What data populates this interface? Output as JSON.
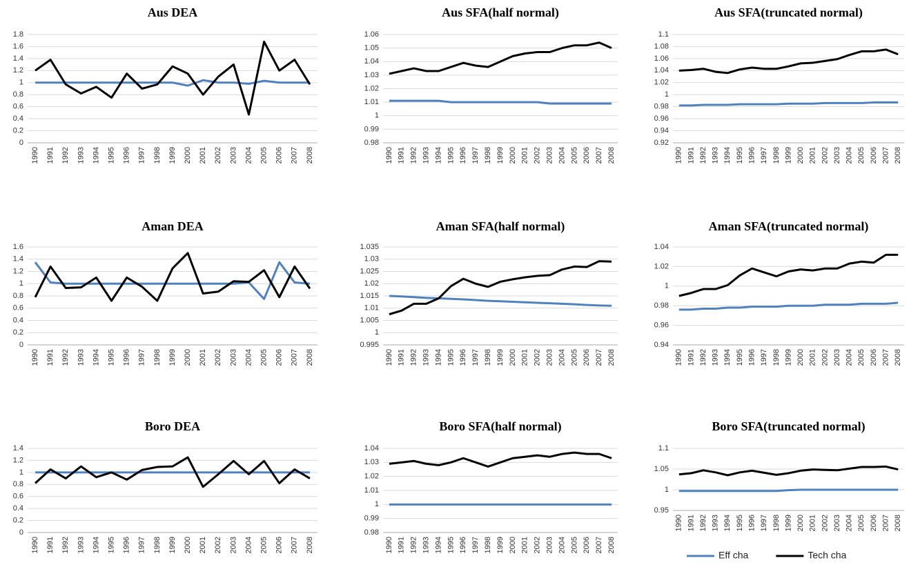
{
  "chart_data": [
    {
      "type": "line",
      "title": "Aus DEA",
      "categories": [
        "1990",
        "1991",
        "1992",
        "1993",
        "1994",
        "1995",
        "1996",
        "1997",
        "1998",
        "1999",
        "2000",
        "2001",
        "2002",
        "2003",
        "2004",
        "2005",
        "2006",
        "2007",
        "2008"
      ],
      "ylim": [
        0,
        1.8
      ],
      "yticks": [
        0,
        0.2,
        0.4,
        0.6,
        0.8,
        1,
        1.2,
        1.4,
        1.6,
        1.8
      ],
      "grid": true,
      "series": [
        {
          "color": "#4f81bd",
          "values": [
            1,
            1,
            1,
            1,
            1,
            1,
            1,
            1,
            1,
            1,
            0.95,
            1.04,
            1,
            1,
            0.98,
            1.03,
            1,
            1,
            1
          ]
        },
        {
          "color": "#000000",
          "values": [
            1.2,
            1.38,
            0.97,
            0.82,
            0.93,
            0.75,
            1.15,
            0.9,
            0.97,
            1.27,
            1.15,
            0.8,
            1.1,
            1.3,
            0.47,
            1.68,
            1.2,
            1.38,
            0.97
          ]
        }
      ]
    },
    {
      "type": "line",
      "title": "Aus SFA(half normal)",
      "categories": [
        "1990",
        "1991",
        "1992",
        "1993",
        "1994",
        "1995",
        "1996",
        "1997",
        "1998",
        "1999",
        "2000",
        "2001",
        "2002",
        "2003",
        "2004",
        "2005",
        "2006",
        "2007",
        "2008"
      ],
      "ylim": [
        0.98,
        1.06
      ],
      "yticks": [
        0.98,
        0.99,
        1,
        1.01,
        1.02,
        1.03,
        1.04,
        1.05,
        1.06
      ],
      "grid": true,
      "series": [
        {
          "color": "#4f81bd",
          "values": [
            1.011,
            1.011,
            1.011,
            1.011,
            1.011,
            1.01,
            1.01,
            1.01,
            1.01,
            1.01,
            1.01,
            1.01,
            1.01,
            1.009,
            1.009,
            1.009,
            1.009,
            1.009,
            1.009
          ]
        },
        {
          "color": "#000000",
          "values": [
            1.031,
            1.033,
            1.035,
            1.033,
            1.033,
            1.036,
            1.039,
            1.037,
            1.036,
            1.04,
            1.044,
            1.046,
            1.047,
            1.047,
            1.05,
            1.052,
            1.052,
            1.054,
            1.05
          ]
        }
      ]
    },
    {
      "type": "line",
      "title": "Aus SFA(truncated normal)",
      "categories": [
        "1990",
        "1991",
        "1992",
        "1993",
        "1994",
        "1995",
        "1996",
        "1997",
        "1998",
        "1999",
        "2000",
        "2001",
        "2002",
        "2003",
        "2004",
        "2005",
        "2006",
        "2007",
        "2008"
      ],
      "ylim": [
        0.92,
        1.1
      ],
      "yticks": [
        0.92,
        0.94,
        0.96,
        0.98,
        1,
        1.02,
        1.04,
        1.06,
        1.08,
        1.1
      ],
      "grid": true,
      "series": [
        {
          "color": "#4f81bd",
          "values": [
            0.982,
            0.982,
            0.983,
            0.983,
            0.983,
            0.984,
            0.984,
            0.984,
            0.984,
            0.985,
            0.985,
            0.985,
            0.986,
            0.986,
            0.986,
            0.986,
            0.987,
            0.987,
            0.987
          ]
        },
        {
          "color": "#000000",
          "values": [
            1.04,
            1.041,
            1.043,
            1.038,
            1.036,
            1.042,
            1.045,
            1.043,
            1.043,
            1.047,
            1.052,
            1.053,
            1.056,
            1.059,
            1.066,
            1.072,
            1.072,
            1.075,
            1.067
          ]
        }
      ]
    },
    {
      "type": "line",
      "title": "Aman DEA",
      "categories": [
        "1990",
        "1991",
        "1992",
        "1993",
        "1994",
        "1995",
        "1996",
        "1997",
        "1998",
        "1999",
        "2000",
        "2001",
        "2002",
        "2003",
        "2004",
        "2005",
        "2006",
        "2007",
        "2008"
      ],
      "ylim": [
        0,
        1.6
      ],
      "yticks": [
        0,
        0.2,
        0.4,
        0.6,
        0.8,
        1,
        1.2,
        1.4,
        1.6
      ],
      "grid": true,
      "series": [
        {
          "color": "#4f81bd",
          "values": [
            1.35,
            1.02,
            1,
            1,
            1,
            1,
            1,
            1,
            1,
            1,
            1,
            1,
            1,
            1,
            1.02,
            0.75,
            1.35,
            1.02,
            1
          ]
        },
        {
          "color": "#000000",
          "values": [
            0.78,
            1.28,
            0.93,
            0.94,
            1.1,
            0.72,
            1.1,
            0.95,
            0.72,
            1.25,
            1.5,
            0.84,
            0.87,
            1.04,
            1.03,
            1.22,
            0.78,
            1.28,
            0.92
          ]
        }
      ]
    },
    {
      "type": "line",
      "title": "Aman SFA(half normal)",
      "categories": [
        "1990",
        "1991",
        "1992",
        "1993",
        "1994",
        "1995",
        "1996",
        "1997",
        "1998",
        "1999",
        "2000",
        "2001",
        "2002",
        "2003",
        "2004",
        "2005",
        "2006",
        "2007",
        "2008"
      ],
      "ylim": [
        0.995,
        1.035
      ],
      "yticks": [
        0.995,
        1,
        1.005,
        1.01,
        1.015,
        1.02,
        1.025,
        1.03,
        1.035
      ],
      "grid": true,
      "series": [
        {
          "color": "#4f81bd",
          "values": [
            1.015,
            1.0148,
            1.0145,
            1.0142,
            1.014,
            1.0138,
            1.0136,
            1.0133,
            1.013,
            1.0128,
            1.0126,
            1.0124,
            1.0122,
            1.012,
            1.0118,
            1.0116,
            1.0113,
            1.0111,
            1.011
          ]
        },
        {
          "color": "#000000",
          "values": [
            1.0075,
            1.009,
            1.0118,
            1.0118,
            1.014,
            1.019,
            1.022,
            1.02,
            1.0187,
            1.0208,
            1.0218,
            1.0226,
            1.0232,
            1.0235,
            1.0258,
            1.027,
            1.0268,
            1.0292,
            1.029
          ]
        }
      ]
    },
    {
      "type": "line",
      "title": "Aman SFA(truncated normal)",
      "categories": [
        "1990",
        "1991",
        "1992",
        "1993",
        "1994",
        "1995",
        "1996",
        "1997",
        "1998",
        "1999",
        "2000",
        "2001",
        "2002",
        "2003",
        "2004",
        "2005",
        "2006",
        "2007",
        "2008"
      ],
      "ylim": [
        0.94,
        1.04
      ],
      "yticks": [
        0.94,
        0.96,
        0.98,
        1,
        1.02,
        1.04
      ],
      "grid": true,
      "series": [
        {
          "color": "#4f81bd",
          "values": [
            0.976,
            0.976,
            0.977,
            0.977,
            0.978,
            0.978,
            0.979,
            0.979,
            0.979,
            0.98,
            0.98,
            0.98,
            0.981,
            0.981,
            0.981,
            0.982,
            0.982,
            0.982,
            0.983
          ]
        },
        {
          "color": "#000000",
          "values": [
            0.99,
            0.993,
            0.997,
            0.997,
            1.001,
            1.011,
            1.018,
            1.014,
            1.01,
            1.015,
            1.017,
            1.016,
            1.018,
            1.018,
            1.023,
            1.025,
            1.024,
            1.032,
            1.032
          ]
        }
      ]
    },
    {
      "type": "line",
      "title": "Boro DEA",
      "categories": [
        "1990",
        "1991",
        "1992",
        "1993",
        "1994",
        "1995",
        "1996",
        "1997",
        "1998",
        "1999",
        "2000",
        "2001",
        "2002",
        "2003",
        "2004",
        "2005",
        "2006",
        "2007",
        "2008"
      ],
      "ylim": [
        0,
        1.4
      ],
      "yticks": [
        0,
        0.2,
        0.4,
        0.6,
        0.8,
        1,
        1.2,
        1.4
      ],
      "grid": true,
      "series": [
        {
          "color": "#4f81bd",
          "values": [
            1,
            1,
            1,
            1,
            1,
            1,
            1,
            1,
            1,
            1,
            1,
            1,
            1,
            1,
            1,
            1,
            1,
            1,
            1
          ]
        },
        {
          "color": "#000000",
          "values": [
            0.82,
            1.05,
            0.9,
            1.1,
            0.92,
            1,
            0.88,
            1.04,
            1.09,
            1.1,
            1.25,
            0.76,
            0.97,
            1.19,
            0.97,
            1.19,
            0.82,
            1.05,
            0.9
          ]
        }
      ]
    },
    {
      "type": "line",
      "title": "Boro SFA(half normal)",
      "categories": [
        "1990",
        "1991",
        "1992",
        "1993",
        "1994",
        "1995",
        "1996",
        "1997",
        "1998",
        "1999",
        "2000",
        "2001",
        "2002",
        "2003",
        "2004",
        "2005",
        "2006",
        "2007",
        "2008"
      ],
      "ylim": [
        0.98,
        1.04
      ],
      "yticks": [
        0.98,
        0.99,
        1,
        1.01,
        1.02,
        1.03,
        1.04
      ],
      "grid": true,
      "series": [
        {
          "color": "#4f81bd",
          "values": [
            1,
            1,
            1,
            1,
            1,
            1,
            1,
            1,
            1,
            1,
            1,
            1,
            1,
            1,
            1,
            1,
            1,
            1,
            1
          ]
        },
        {
          "color": "#000000",
          "values": [
            1.029,
            1.03,
            1.031,
            1.029,
            1.028,
            1.03,
            1.033,
            1.03,
            1.027,
            1.03,
            1.033,
            1.034,
            1.035,
            1.034,
            1.036,
            1.037,
            1.036,
            1.036,
            1.033
          ]
        }
      ]
    },
    {
      "type": "line",
      "title": "Boro SFA(truncated normal)",
      "categories": [
        "1990",
        "1991",
        "1992",
        "1993",
        "1994",
        "1995",
        "1996",
        "1997",
        "1998",
        "1999",
        "2000",
        "2001",
        "2002",
        "2003",
        "2004",
        "2005",
        "2006",
        "2007",
        "2008"
      ],
      "ylim": [
        0.95,
        1.1
      ],
      "yticks": [
        0.95,
        1,
        1.05,
        1.1
      ],
      "grid": true,
      "legend": "bottom",
      "series": [
        {
          "name": "Eff cha",
          "color": "#4f81bd",
          "values": [
            0.997,
            0.997,
            0.997,
            0.997,
            0.997,
            0.997,
            0.997,
            0.997,
            0.997,
            0.999,
            1,
            1,
            1,
            1,
            1,
            1,
            1,
            1,
            1
          ]
        },
        {
          "name": "Tech cha",
          "color": "#000000",
          "values": [
            1.037,
            1.04,
            1.047,
            1.042,
            1.035,
            1.042,
            1.046,
            1.041,
            1.036,
            1.04,
            1.046,
            1.049,
            1.048,
            1.047,
            1.051,
            1.055,
            1.055,
            1.056,
            1.049
          ]
        }
      ]
    }
  ]
}
